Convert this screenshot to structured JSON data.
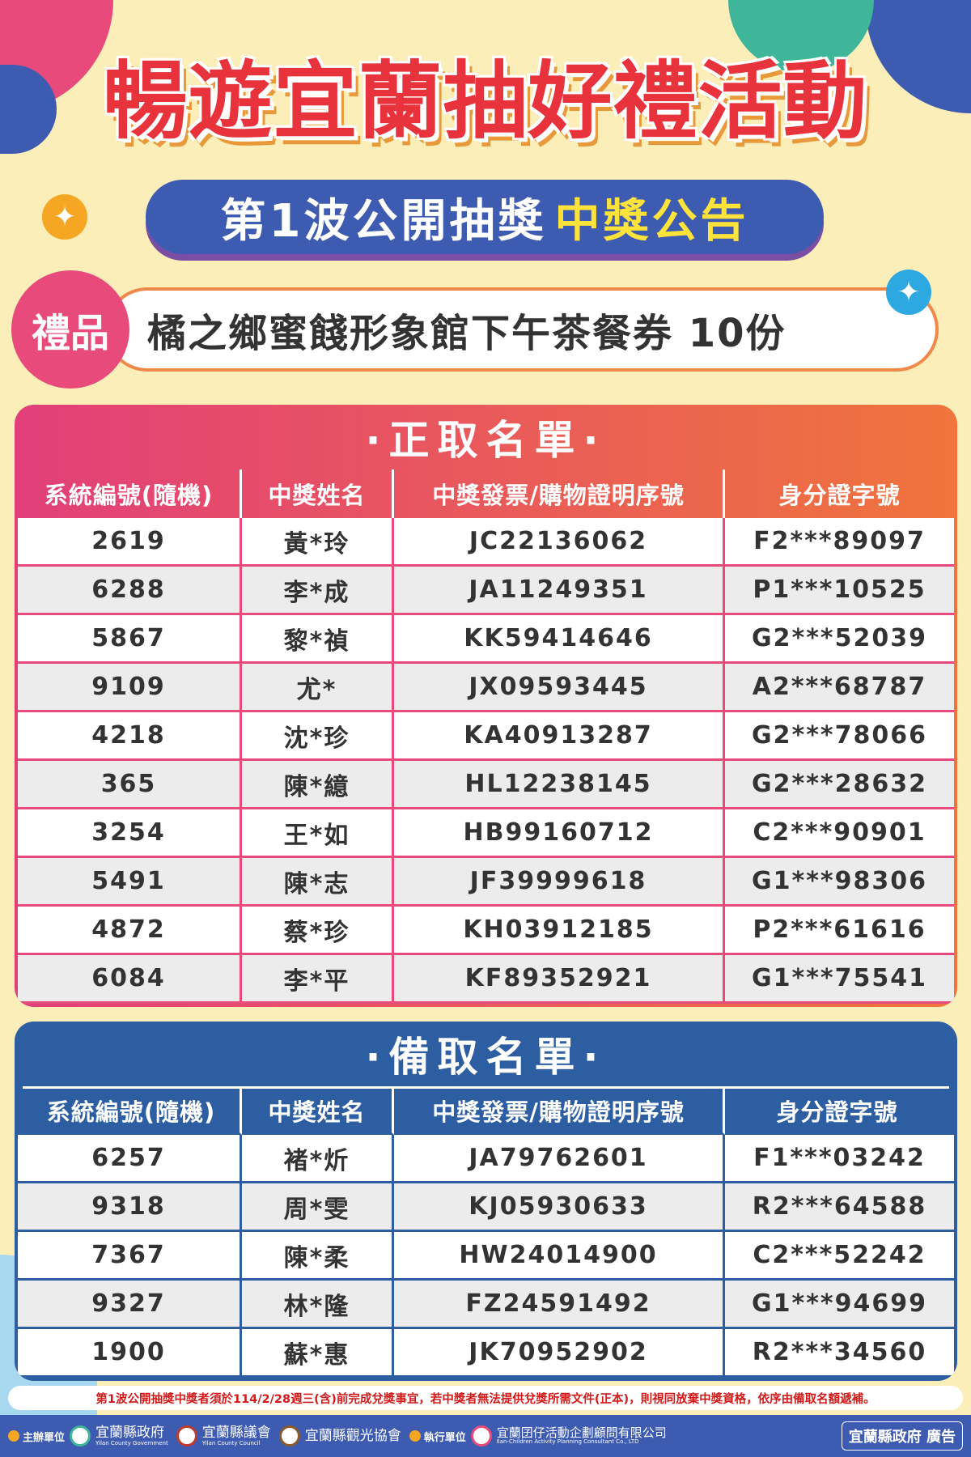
{
  "header": {
    "title": "暢遊宜蘭抽好禮活動",
    "wave_title": "第1波公開抽獎",
    "wave_highlight": "中獎公告"
  },
  "gift": {
    "label": "禮品",
    "description": "橘之鄉蜜餞形象館下午茶餐券 10份"
  },
  "colors": {
    "winner_accent": "#e84a7c",
    "backup_accent": "#2e5ea2",
    "wave_bg": "#3d5bb0",
    "highlight": "#ffe23a"
  },
  "columns": [
    "系統編號(隨機)",
    "中獎姓名",
    "中獎發票/購物證明序號",
    "身分證字號"
  ],
  "winners": {
    "title": "·正取名單·",
    "rows": [
      [
        "2619",
        "黃*玲",
        "JC22136062",
        "F2***89097"
      ],
      [
        "6288",
        "李*成",
        "JA11249351",
        "P1***10525"
      ],
      [
        "5867",
        "黎*禎",
        "KK59414646",
        "G2***52039"
      ],
      [
        "9109",
        "尤*",
        "JX09593445",
        "A2***68787"
      ],
      [
        "4218",
        "沈*珍",
        "KA40913287",
        "G2***78066"
      ],
      [
        "365",
        "陳*繶",
        "HL12238145",
        "G2***28632"
      ],
      [
        "3254",
        "王*如",
        "HB99160712",
        "C2***90901"
      ],
      [
        "5491",
        "陳*志",
        "JF39999618",
        "G1***98306"
      ],
      [
        "4872",
        "蔡*珍",
        "KH03912185",
        "P2***61616"
      ],
      [
        "6084",
        "李*平",
        "KF89352921",
        "G1***75541"
      ]
    ]
  },
  "backups": {
    "title": "·備取名單·",
    "rows": [
      [
        "6257",
        "褚*炘",
        "JA79762601",
        "F1***03242"
      ],
      [
        "9318",
        "周*雯",
        "KJ05930633",
        "R2***64588"
      ],
      [
        "7367",
        "陳*柔",
        "HW24014900",
        "C2***52242"
      ],
      [
        "9327",
        "林*隆",
        "FZ24591492",
        "G1***94699"
      ],
      [
        "1900",
        "蘇*惠",
        "JK70952902",
        "R2***34560"
      ]
    ]
  },
  "notice": "第1波公開抽獎中獎者須於114/2/28週三(含)前完成兌獎事宜，若中獎者無法提供兌獎所需文件(正本)，則視同放棄中獎資格，依序由備取名額遞補。",
  "footer": {
    "organizer_label": "主辦單位",
    "organizers": [
      {
        "zh": "宜蘭縣政府",
        "en": "Yilan County Government"
      },
      {
        "zh": "宜蘭縣議會",
        "en": "Yilan County Council"
      },
      {
        "zh": "宜蘭縣觀光協會",
        "en": ""
      }
    ],
    "executor_label": "執行單位",
    "executor": {
      "zh": "宜蘭囝仔活動企劃顧問有限公司",
      "en": "Ilan-Children Activity Planning Consultant Co., LTD"
    },
    "ad_label": "宜蘭縣政府 廣告"
  }
}
